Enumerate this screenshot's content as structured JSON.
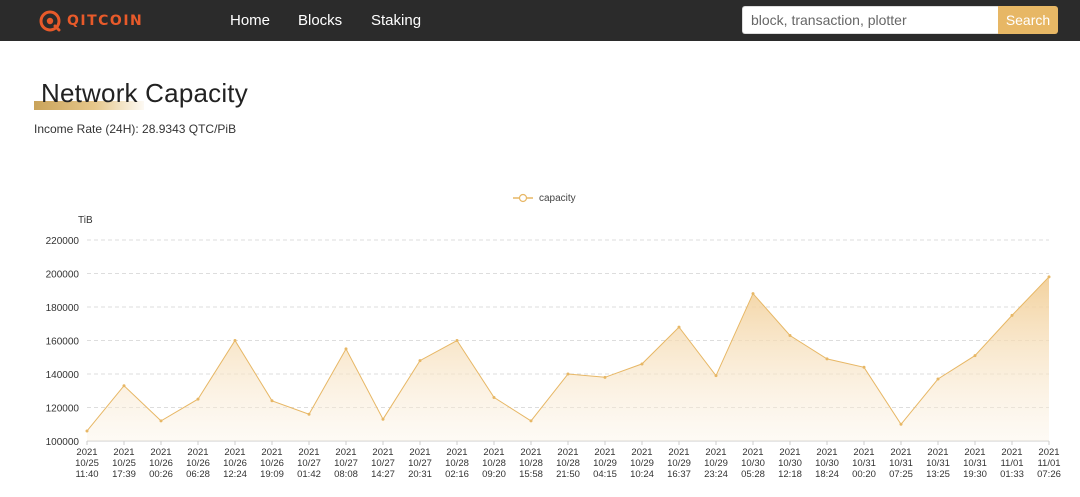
{
  "brand": {
    "name": "QITCOIN",
    "accent_color": "#e85a2a"
  },
  "nav": {
    "items": [
      "Home",
      "Blocks",
      "Staking"
    ]
  },
  "search": {
    "placeholder": "block, transaction, plotter",
    "button_label": "Search",
    "button_color": "#e7b765"
  },
  "page": {
    "title": "Network Capacity",
    "income_rate": "Income Rate (24H): 28.9343 QTC/PiB"
  },
  "chart_data": {
    "type": "area",
    "title": "",
    "ylabel": "TiB",
    "xlabel": "",
    "ylim": [
      100000,
      220000
    ],
    "yticks": [
      "100000",
      "120000",
      "140000",
      "160000",
      "180000",
      "200000",
      "220000"
    ],
    "grid": true,
    "legend_position": "top-center",
    "series": [
      {
        "name": "capacity",
        "color": "#e7b765",
        "x": [
          "2021 10/25 11:40",
          "2021 10/25 17:39",
          "2021 10/26 00:26",
          "2021 10/26 06:28",
          "2021 10/26 12:24",
          "2021 10/26 19:09",
          "2021 10/27 01:42",
          "2021 10/27 08:08",
          "2021 10/27 14:27",
          "2021 10/27 20:31",
          "2021 10/28 02:16",
          "2021 10/28 09:20",
          "2021 10/28 15:58",
          "2021 10/28 21:50",
          "2021 10/29 04:15",
          "2021 10/29 10:24",
          "2021 10/29 16:37",
          "2021 10/29 23:24",
          "2021 10/30 05:28",
          "2021 10/30 12:18",
          "2021 10/30 18:24",
          "2021 10/31 00:20",
          "2021 10/31 07:25",
          "2021 10/31 13:25",
          "2021 10/31 19:30",
          "2021 11/01 01:33",
          "2021 11/01 07:26"
        ],
        "values": [
          106000,
          133000,
          112000,
          125000,
          160000,
          124000,
          116000,
          155000,
          113000,
          148000,
          160000,
          126000,
          112000,
          140000,
          138000,
          146000,
          168000,
          139000,
          188000,
          163000,
          149000,
          144000,
          110000,
          137000,
          151000,
          175000,
          198000
        ]
      }
    ]
  }
}
